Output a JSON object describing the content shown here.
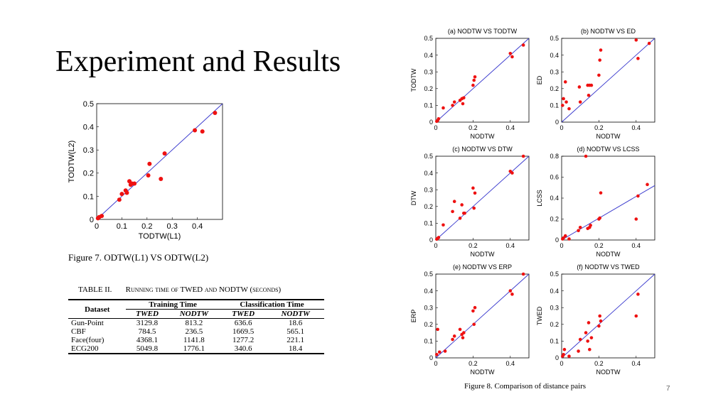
{
  "slide": {
    "title": "Experiment and Results",
    "page_number": "7"
  },
  "figure7_caption": "Figure 7.   ODTW(L1) VS ODTW(L2)",
  "figure8_caption": "Figure 8.   Comparison of distance pairs",
  "table": {
    "caption_prefix": "TABLE II.",
    "caption_text": "Running time of TWED and NODTW (seconds)",
    "row_header": "Dataset",
    "groups": [
      "Training Time",
      "Classification Time"
    ],
    "subheaders": [
      "TWED",
      "NODTW",
      "TWED",
      "NODTW"
    ],
    "rows": [
      [
        "Gun-Point",
        "3129.8",
        "813.2",
        "636.6",
        "18.6"
      ],
      [
        "CBF",
        "784.5",
        "236.5",
        "1669.5",
        "565.1"
      ],
      [
        "Face(four)",
        "4368.1",
        "1141.8",
        "1277.2",
        "221.1"
      ],
      [
        "ECG200",
        "5049.8",
        "1776.1",
        "340.6",
        "18.4"
      ]
    ]
  },
  "colors": {
    "points": "#ee1111",
    "diagonal": "#3333cc"
  },
  "chart_data": [
    {
      "id": "fig7",
      "type": "scatter",
      "title": "",
      "xlabel": "TODTW(L1)",
      "ylabel": "TODTW(L2)",
      "xlim": [
        0,
        0.5
      ],
      "ylim": [
        0,
        0.5
      ],
      "xticks": [
        "0",
        "0.1",
        "0.2",
        "0.3",
        "0.4"
      ],
      "yticks": [
        "0",
        "0.1",
        "0.2",
        "0.3",
        "0.4",
        "0.5"
      ],
      "reference_line": [
        [
          0,
          0
        ],
        [
          0.5,
          0.5
        ]
      ],
      "x": [
        0.005,
        0.01,
        0.02,
        0.09,
        0.1,
        0.115,
        0.12,
        0.13,
        0.135,
        0.14,
        0.15,
        0.205,
        0.21,
        0.255,
        0.27,
        0.39,
        0.42,
        0.47
      ],
      "y": [
        0.005,
        0.01,
        0.015,
        0.085,
        0.11,
        0.125,
        0.115,
        0.165,
        0.15,
        0.155,
        0.155,
        0.19,
        0.24,
        0.175,
        0.285,
        0.385,
        0.38,
        0.46
      ]
    },
    {
      "id": "fig8a",
      "type": "scatter",
      "title": "(a) NODTW VS TODTW",
      "xlabel": "NODTW",
      "ylabel": "TODTW",
      "xlim": [
        0,
        0.5
      ],
      "ylim": [
        0,
        0.5
      ],
      "xticks": [
        "0",
        "0.2",
        "0.4"
      ],
      "yticks": [
        "0",
        "0.1",
        "0.2",
        "0.3",
        "0.4",
        "0.5"
      ],
      "reference_line": [
        [
          0,
          0
        ],
        [
          0.5,
          0.5
        ]
      ],
      "x": [
        0.005,
        0.01,
        0.015,
        0.04,
        0.09,
        0.1,
        0.13,
        0.14,
        0.145,
        0.15,
        0.2,
        0.205,
        0.21,
        0.4,
        0.41,
        0.47
      ],
      "y": [
        0.005,
        0.01,
        0.02,
        0.085,
        0.1,
        0.12,
        0.13,
        0.14,
        0.11,
        0.145,
        0.22,
        0.25,
        0.27,
        0.41,
        0.39,
        0.46
      ]
    },
    {
      "id": "fig8b",
      "type": "scatter",
      "title": "(b) NODTW VS ED",
      "xlabel": "NODTW",
      "ylabel": "ED",
      "xlim": [
        0,
        0.5
      ],
      "ylim": [
        0,
        0.5
      ],
      "xticks": [
        "0",
        "0.2",
        "0.4"
      ],
      "yticks": [
        "0",
        "0.1",
        "0.2",
        "0.3",
        "0.4",
        "0.5"
      ],
      "reference_line": [
        [
          0,
          0
        ],
        [
          0.5,
          0.5
        ]
      ],
      "x": [
        0.005,
        0.01,
        0.02,
        0.025,
        0.04,
        0.095,
        0.1,
        0.14,
        0.145,
        0.15,
        0.16,
        0.2,
        0.205,
        0.21,
        0.4,
        0.41,
        0.47
      ],
      "y": [
        0.1,
        0.14,
        0.24,
        0.12,
        0.08,
        0.21,
        0.12,
        0.22,
        0.16,
        0.22,
        0.22,
        0.28,
        0.37,
        0.43,
        0.49,
        0.38,
        0.47
      ]
    },
    {
      "id": "fig8c",
      "type": "scatter",
      "title": "(c) NODTW VS DTW",
      "xlabel": "NODTW",
      "ylabel": "DTW",
      "xlim": [
        0,
        0.5
      ],
      "ylim": [
        0,
        0.5
      ],
      "xticks": [
        "0",
        "0.2",
        "0.4"
      ],
      "yticks": [
        "0",
        "0.1",
        "0.2",
        "0.3",
        "0.4",
        "0.5"
      ],
      "reference_line": [
        [
          0,
          0
        ],
        [
          0.5,
          0.5
        ]
      ],
      "x": [
        0.005,
        0.01,
        0.015,
        0.04,
        0.09,
        0.1,
        0.13,
        0.14,
        0.15,
        0.155,
        0.2,
        0.205,
        0.21,
        0.4,
        0.41,
        0.47
      ],
      "y": [
        0.005,
        0.01,
        0.015,
        0.09,
        0.17,
        0.23,
        0.13,
        0.21,
        0.16,
        0.16,
        0.31,
        0.19,
        0.28,
        0.41,
        0.4,
        0.5
      ]
    },
    {
      "id": "fig8d",
      "type": "scatter",
      "title": "(d) NODTW VS LCSS",
      "xlabel": "NODTW",
      "ylabel": "LCSS",
      "xlim": [
        0,
        0.5
      ],
      "ylim": [
        0,
        0.8
      ],
      "xticks": [
        "0",
        "0.2",
        "0.4"
      ],
      "yticks": [
        "0",
        "0.2",
        "0.4",
        "0.6",
        "0.8"
      ],
      "reference_line": [
        [
          0,
          0
        ],
        [
          0.5,
          0.52
        ]
      ],
      "x": [
        0.005,
        0.01,
        0.02,
        0.04,
        0.09,
        0.1,
        0.14,
        0.15,
        0.155,
        0.2,
        0.205,
        0.21,
        0.4,
        0.41,
        0.46,
        0.13
      ],
      "y": [
        0.01,
        0.02,
        0.04,
        0.01,
        0.09,
        0.12,
        0.11,
        0.12,
        0.14,
        0.2,
        0.21,
        0.45,
        0.2,
        0.42,
        0.53,
        0.8
      ]
    },
    {
      "id": "fig8e",
      "type": "scatter",
      "title": "(e) NODTW VS ERP",
      "xlabel": "NODTW",
      "ylabel": "ERP",
      "xlim": [
        0,
        0.5
      ],
      "ylim": [
        0,
        0.5
      ],
      "xticks": [
        "0",
        "0.2",
        "0.4"
      ],
      "yticks": [
        "0",
        "0.1",
        "0.2",
        "0.3",
        "0.4",
        "0.5"
      ],
      "reference_line": [
        [
          0,
          0
        ],
        [
          0.5,
          0.5
        ]
      ],
      "x": [
        0.005,
        0.01,
        0.02,
        0.05,
        0.09,
        0.1,
        0.13,
        0.14,
        0.145,
        0.15,
        0.2,
        0.205,
        0.21,
        0.4,
        0.41,
        0.47
      ],
      "y": [
        0.02,
        0.17,
        0.035,
        0.04,
        0.11,
        0.13,
        0.17,
        0.14,
        0.12,
        0.15,
        0.28,
        0.2,
        0.3,
        0.4,
        0.38,
        0.5
      ]
    },
    {
      "id": "fig8f",
      "type": "scatter",
      "title": "(f) NODTW VS TWED",
      "xlabel": "NODTW",
      "ylabel": "TWED",
      "xlim": [
        0,
        0.5
      ],
      "ylim": [
        0,
        0.5
      ],
      "xticks": [
        "0",
        "0.2",
        "0.4"
      ],
      "yticks": [
        "0",
        "0.1",
        "0.2",
        "0.3",
        "0.4",
        "0.5"
      ],
      "reference_line": [
        [
          0,
          0
        ],
        [
          0.5,
          0.5
        ]
      ],
      "x": [
        0.005,
        0.01,
        0.015,
        0.04,
        0.09,
        0.1,
        0.13,
        0.14,
        0.145,
        0.15,
        0.2,
        0.205,
        0.21,
        0.4,
        0.41,
        0.16
      ],
      "y": [
        0.01,
        0.02,
        0.05,
        0.01,
        0.04,
        0.11,
        0.15,
        0.1,
        0.21,
        0.05,
        0.19,
        0.25,
        0.22,
        0.25,
        0.38,
        0.12
      ]
    }
  ]
}
